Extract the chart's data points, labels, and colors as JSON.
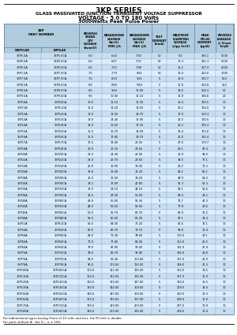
{
  "title": "3KP SERIES",
  "subtitle1": "GLASS PASSIVATED JUNCTION TRANSIENT VOLTAGE SUPPRESSOR",
  "subtitle2": "VOLTAGE - 5.0 TO 180 Volts",
  "subtitle3": "3000Watts Peak Pulse Power",
  "header_row1": [
    "3KP\nPART NUMBER",
    "",
    "REVERSE\nSTAND\nOFF\nVOLTAGE\nVrwm(V)",
    "BREAKDOWN\nVOLTAGE\nVbr(V)\nMIN @It",
    "BREAKDOWN\nVOLTAGE\nVbr(V)\nMAX @It",
    "TEST\nCURRENT\nIt(mA)",
    "MAXIMUM\nCLAMPING\nVOLTAGE\n@Ipp Vc(V)",
    "PEAK\nPULSE\nCURRENT\nIpp(A)",
    "REVERSE\nLEAKAGE\n@ Vrwm\nIr(uA)"
  ],
  "header_row2": [
    "UNIPOLAR",
    "BIPOLAR",
    "",
    "",
    "",
    "",
    "",
    "",
    ""
  ],
  "rows": [
    [
      "3KP5.0A",
      "3KP5.0CA",
      "5.0",
      "6.40",
      "7.00",
      "50",
      "9.2",
      "326.1",
      "5000"
    ],
    [
      "3KP6.0A",
      "3KP6.0CA",
      "6.0",
      "6.67",
      "7.37",
      "50",
      "10.3",
      "291.3",
      "5000"
    ],
    [
      "3KP6.5A",
      "3KP6.5CA",
      "6.5",
      "7.22",
      "7.98",
      "50",
      "11.2",
      "267.9",
      "2000"
    ],
    [
      "3KP7.0A",
      "3KP7.0CA",
      "7.0",
      "7.79",
      "8.61",
      "50",
      "12.0",
      "250.0",
      "1000"
    ],
    [
      "3KP7.5A",
      "3KP7.5CA",
      "7.5",
      "8.33",
      "9.21",
      "5",
      "11.0",
      "272.7",
      "500"
    ],
    [
      "3KP8.0A",
      "3KP8.0CA",
      "8.0",
      "8.89",
      "9.83",
      "5",
      "11.8",
      "220.8",
      "200"
    ],
    [
      "3KP8.5A",
      "3KP8.5CA",
      "8.5",
      "9.44",
      "10.40",
      "5",
      "14.0",
      "204.3",
      "50"
    ],
    [
      "3KP9.0A",
      "3KP9.0CA",
      "9.0",
      "10.00",
      "11.10",
      "5",
      "11.8",
      "194.6",
      "20"
    ],
    [
      "3KP10A",
      "3KP10CA",
      "10.0",
      "11.10",
      "12.30",
      "5",
      "15.0",
      "176.5",
      "10"
    ],
    [
      "3KP11A",
      "3KP11CA",
      "11.0",
      "12.20",
      "13.50",
      "5",
      "16.2",
      "164.0",
      "10"
    ],
    [
      "3KP12A",
      "3KP12CA",
      "12.0",
      "13.30",
      "14.70",
      "5",
      "17.9",
      "150.3",
      "10"
    ],
    [
      "3KP13A",
      "3KP13CA",
      "13.0",
      "14.40",
      "15.90",
      "5",
      "21.5",
      "130.5",
      "10"
    ],
    [
      "3KP14A",
      "3KP14CA",
      "14.0",
      "15.60",
      "17.20",
      "5",
      "23.2",
      "129.3",
      "10"
    ],
    [
      "3KP15A",
      "3KP15CA",
      "15.0",
      "16.70",
      "18.50",
      "5",
      "24.4",
      "123.0",
      "10"
    ],
    [
      "3KP16A",
      "3KP16CA",
      "16.0",
      "17.80",
      "19.70",
      "5",
      "26.0",
      "115.4",
      "10"
    ],
    [
      "3KP17A",
      "3KP17CA",
      "17.5",
      "19.40",
      "21.50",
      "5",
      "27.0",
      "100.7",
      "10"
    ],
    [
      "3KP18A",
      "3KP18CA",
      "20.0",
      "22.20",
      "24.50",
      "5",
      "29.1",
      "97.4",
      "10"
    ],
    [
      "3KP20A",
      "3KP20CA",
      "22.0",
      "24.40",
      "26.90",
      "5",
      "31.9",
      "94.0",
      "10"
    ],
    [
      "3KP22A",
      "3KP22CA",
      "24.0",
      "26.70",
      "29.50",
      "5",
      "34.5",
      "77.1",
      "10"
    ],
    [
      "3KP24A",
      "3KP24CA",
      "26.8",
      "30.00",
      "33.00",
      "5",
      "40.2",
      "71.3",
      "10"
    ],
    [
      "3KP26A",
      "3KP26CA",
      "28.8",
      "32.00",
      "35.20",
      "5",
      "42.1",
      "66.1",
      "10"
    ],
    [
      "3KP28A",
      "3KP28CA",
      "31.9",
      "35.50",
      "39.20",
      "5",
      "49.9",
      "54.0",
      "10"
    ],
    [
      "3KP30A",
      "3KP30CA",
      "33.3",
      "37.00",
      "40.80",
      "5",
      "51.3",
      "56.3",
      "10"
    ],
    [
      "3KP33A",
      "3KP33CA",
      "37.0",
      "38.10",
      "42.10",
      "5",
      "54.1",
      "51.6",
      "10"
    ],
    [
      "3KP36A",
      "3KP36CA",
      "41.0",
      "47.00",
      "52.00",
      "5",
      "69.4",
      "43.2",
      "10"
    ],
    [
      "3KP40A",
      "3KP40CA",
      "43.0",
      "50.00",
      "55.30",
      "5",
      "72.7",
      "41.3",
      "10"
    ],
    [
      "3KP43A",
      "3KP43CA",
      "48.0",
      "53.50",
      "59.00",
      "5",
      "77.8",
      "38.6",
      "10"
    ],
    [
      "3KP45A",
      "3KP45CA",
      "50.0",
      "56.70",
      "62.70",
      "5",
      "82.8",
      "36.2",
      "10"
    ],
    [
      "3KP48A",
      "3KP48CA",
      "54.0",
      "60.00",
      "66.30",
      "5",
      "87.1",
      "34.4",
      "10"
    ],
    [
      "3KP51A",
      "3KP51CA",
      "56.0",
      "64.00",
      "71.20",
      "5",
      "91.6",
      "32.1",
      "10"
    ],
    [
      "3KP54A",
      "3KP54CA",
      "60.0",
      "66.70",
      "73.70",
      "5",
      "98.8",
      "30.4",
      "10"
    ],
    [
      "3KP58A",
      "3KP58CA",
      "64.0",
      "71.30",
      "78.60",
      "5",
      "103.0",
      "29.1",
      "10"
    ],
    [
      "3KP60A",
      "3KP60CA",
      "70.0",
      "77.80",
      "86.00",
      "5",
      "113.0",
      "26.5",
      "10"
    ],
    [
      "3KP64A",
      "3KP64CA",
      "79.0",
      "87.90",
      "92.00",
      "5",
      "131.0",
      "22.9",
      "10"
    ],
    [
      "3KP70A",
      "3KP70CA",
      "78.0",
      "86.70",
      "95.80",
      "5",
      "126.0",
      "23.8",
      "10"
    ],
    [
      "3KP75A",
      "3KP75CA",
      "83.0",
      "92.40",
      "102.00",
      "5",
      "137.0",
      "21.9",
      "10"
    ],
    [
      "3KP78A",
      "3KP78CA",
      "90.0",
      "100.00",
      "110.00",
      "5",
      "148.0",
      "20.3",
      "10"
    ],
    [
      "3KP100A",
      "3KP100CA",
      "100.0",
      "111.00",
      "125.00",
      "5",
      "162.0",
      "18.5",
      "10"
    ],
    [
      "3KP110A",
      "3KP110CA",
      "103.0",
      "122.00",
      "135.00",
      "5",
      "177.0",
      "16.9",
      "10"
    ],
    [
      "3KP120A",
      "3KP120CA",
      "120.0",
      "133.00",
      "147.00",
      "5",
      "193.0",
      "15.5",
      "10"
    ],
    [
      "3KP130A",
      "3KP130CA",
      "130.0",
      "144.00",
      "159.00",
      "5",
      "209.0",
      "14.4",
      "10"
    ],
    [
      "3KP150A",
      "3KP150CA",
      "140.0",
      "147.00",
      "165.00",
      "5",
      "243.0",
      "12.3",
      "10"
    ],
    [
      "3KP160A",
      "3KP160CA",
      "163.0",
      "175.00",
      "197.00",
      "5",
      "278.0",
      "11.8",
      "10"
    ],
    [
      "3KP170A",
      "3KP170CA",
      "175.0",
      "180.00",
      "200.00",
      "5",
      "277.0",
      "10.9",
      "10"
    ],
    [
      "3KP180A",
      "3KP180CA",
      "180.0",
      "200.00",
      "235.00",
      "5",
      "289.0",
      "10.4",
      "10"
    ]
  ],
  "footer1": "For bidirectional types having Vrwm of 10 volts and less, the IR limit is double.",
  "footer2": "For parts without A , the Vₘₙ is ± 10%",
  "cell_color_even": "#c8dff0",
  "cell_color_odd": "#ddeeff",
  "header_color": "#b0ccdd",
  "border_color": "#7799aa",
  "title_color": "#000000"
}
